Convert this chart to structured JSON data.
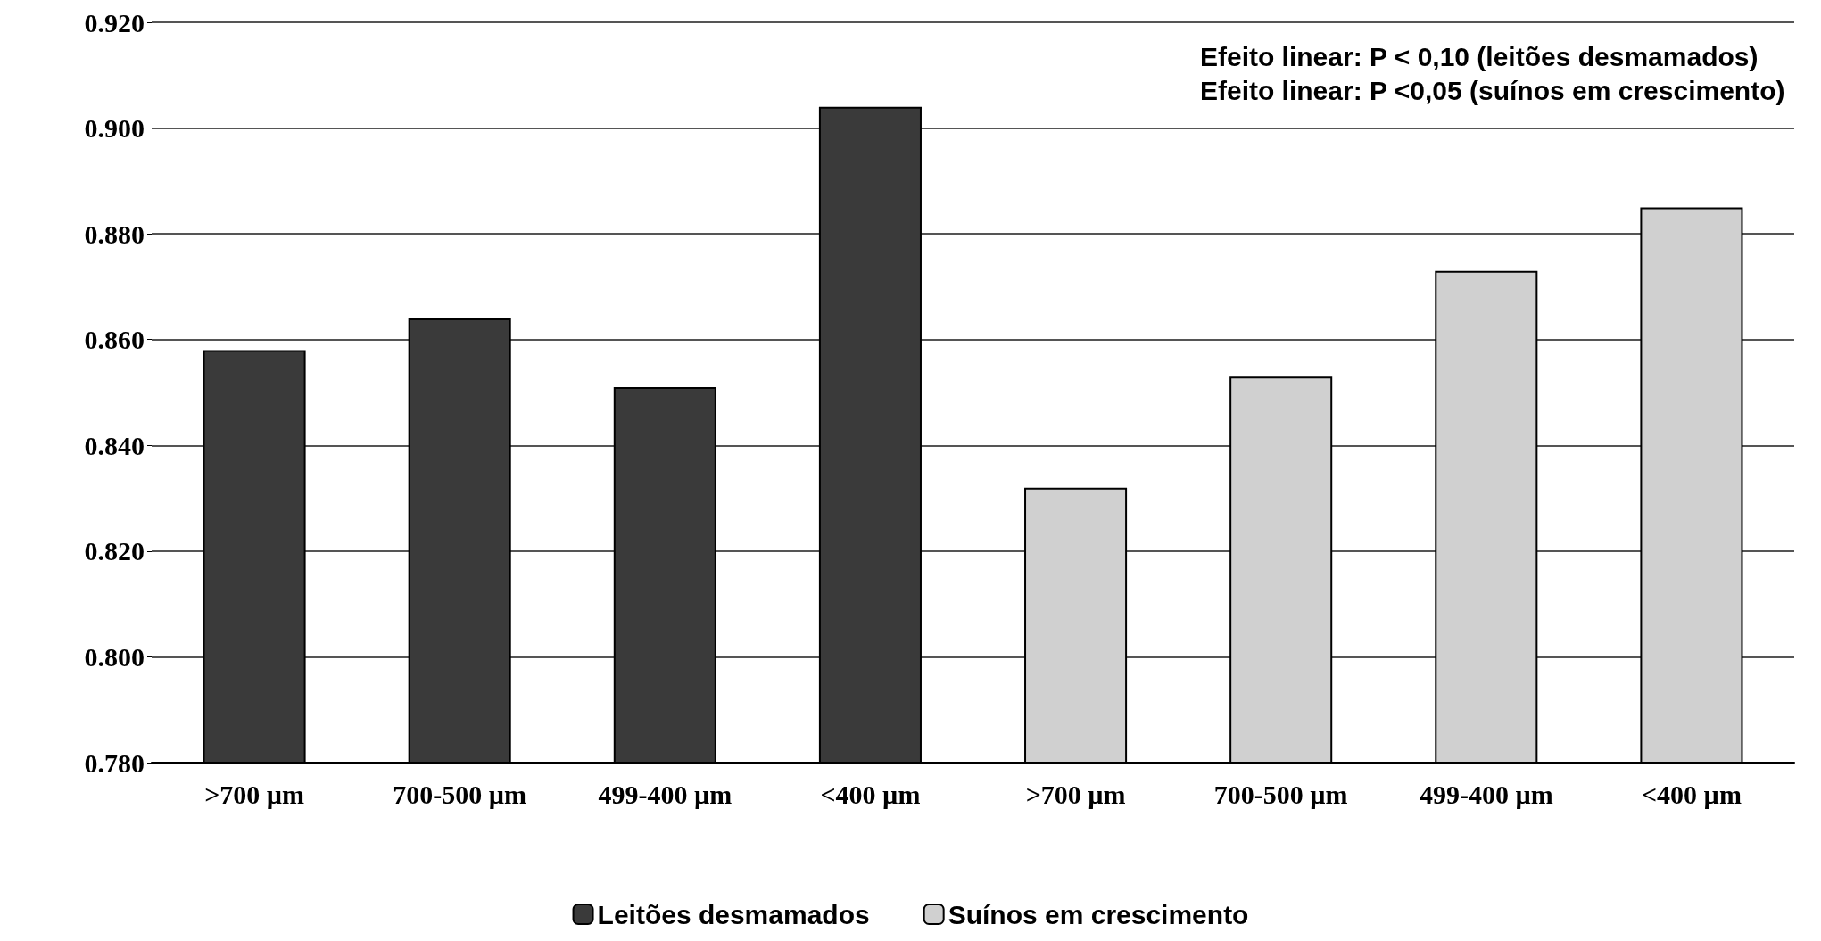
{
  "chart_data": {
    "type": "bar",
    "categories": [
      ">700 µm",
      "700-500 µm",
      "499-400 µm",
      "<400 µm",
      ">700 µm",
      "700-500 µm",
      "499-400 µm",
      "<400 µm"
    ],
    "series": [
      {
        "name": "Leitões desmamados",
        "color": "#3a3a3a",
        "values": [
          0.858,
          0.864,
          0.851,
          0.904,
          null,
          null,
          null,
          null
        ]
      },
      {
        "name": "Suínos em crescimento",
        "color": "#d0d0d0",
        "values": [
          null,
          null,
          null,
          null,
          0.832,
          0.853,
          0.873,
          0.885
        ]
      }
    ],
    "ylim": [
      0.78,
      0.92
    ],
    "yticks": [
      {
        "value": 0.78,
        "label": "0.780"
      },
      {
        "value": 0.8,
        "label": "0.800"
      },
      {
        "value": 0.82,
        "label": "0.820"
      },
      {
        "value": 0.84,
        "label": "0.840"
      },
      {
        "value": 0.86,
        "label": "0.860"
      },
      {
        "value": 0.88,
        "label": "0.880"
      },
      {
        "value": 0.9,
        "label": "0.900"
      },
      {
        "value": 0.92,
        "label": "0.920"
      }
    ],
    "grid": "y",
    "legend": "bottom",
    "annotations": [
      "Efeito linear: P < 0,10 (leitões desmamados)",
      "Efeito linear: P <0,05 (suínos em crescimento)"
    ]
  }
}
